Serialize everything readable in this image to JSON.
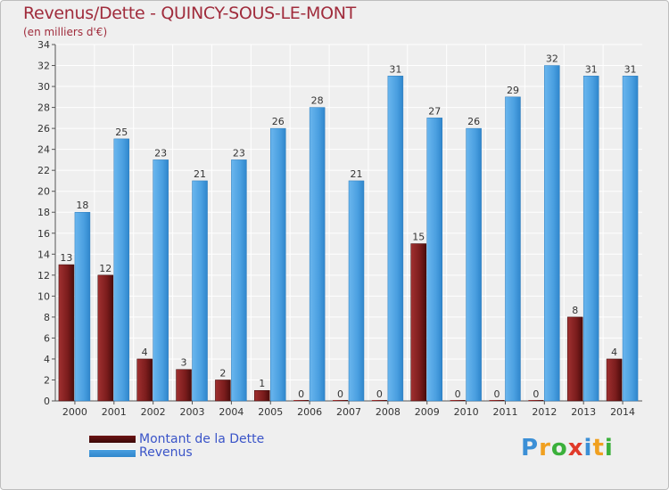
{
  "page": {
    "title": "Revenus/Dette - QUINCY-SOUS-LE-MONT",
    "subtitle": "(en milliers d'€)"
  },
  "chart_data": {
    "type": "bar",
    "title": "Revenus/Dette - QUINCY-SOUS-LE-MONT",
    "ylabel": "(en milliers d'€)",
    "xlabel": "",
    "ylim": [
      0,
      34
    ],
    "ytick_step": 2,
    "grid": true,
    "categories": [
      "2000",
      "2001",
      "2002",
      "2003",
      "2004",
      "2005",
      "2006",
      "2007",
      "2008",
      "2009",
      "2010",
      "2011",
      "2012",
      "2013",
      "2014"
    ],
    "series": [
      {
        "name": "Montant de la Dette",
        "color": "#7a1c1c",
        "values": [
          13,
          12,
          4,
          3,
          2,
          1,
          0,
          0,
          0,
          15,
          0,
          0,
          0,
          8,
          4
        ]
      },
      {
        "name": "Revenus",
        "color": "#4a9fe0",
        "values": [
          18,
          25,
          23,
          21,
          23,
          26,
          28,
          21,
          31,
          27,
          26,
          29,
          32,
          31,
          31
        ]
      }
    ],
    "legend_position": "bottom-left"
  },
  "legend": [
    {
      "label": "Montant de la Dette",
      "color": "#6e1515"
    },
    {
      "label": "Revenus",
      "color": "#4a9fe0"
    }
  ],
  "logo": {
    "letters": [
      "P",
      "r",
      "o",
      "x",
      "i",
      "t",
      "i"
    ],
    "colors": [
      "#3b8fd6",
      "#f0a020",
      "#3bb03b",
      "#e03a2a",
      "#3b8fd6",
      "#f0a020",
      "#3bb03b"
    ]
  }
}
